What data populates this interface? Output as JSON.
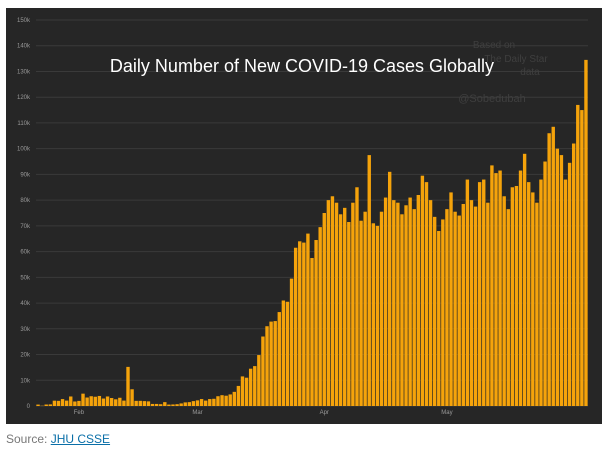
{
  "chart_data": {
    "type": "bar",
    "title": "Daily Number of New COVID-19 Cases Globally",
    "watermark": [
      "Based on",
      "The Daily Star",
      "data",
      "@Sobedubah"
    ],
    "ylim": [
      0,
      150000
    ],
    "y_ticks": [
      0,
      10000,
      20000,
      30000,
      40000,
      50000,
      60000,
      70000,
      80000,
      90000,
      100000,
      110000,
      120000,
      130000,
      140000,
      150000
    ],
    "y_tick_labels": [
      "0",
      "10k",
      "20k",
      "30k",
      "40k",
      "50k",
      "60k",
      "70k",
      "80k",
      "90k",
      "100k",
      "110k",
      "120k",
      "130k",
      "140k",
      "150k"
    ],
    "x_tick_labels": [
      {
        "label": "Feb",
        "index": 10
      },
      {
        "label": "Mar",
        "index": 39
      },
      {
        "label": "Apr",
        "index": 70
      },
      {
        "label": "May",
        "index": 100
      }
    ],
    "bar_color": "#f5a30b",
    "background_color": "#262626",
    "values": [
      555,
      98,
      570,
      623,
      2068,
      2000,
      2689,
      2100,
      3700,
      1752,
      1980,
      4800,
      3300,
      3800,
      3600,
      3900,
      2900,
      3700,
      3100,
      2600,
      3200,
      2100,
      15200,
      6500,
      2000,
      2000,
      1900,
      1800,
      800,
      800,
      700,
      1500,
      550,
      600,
      700,
      1000,
      1400,
      1500,
      1900,
      2200,
      2700,
      2100,
      2700,
      2800,
      3800,
      4200,
      4000,
      4500,
      5500,
      7800,
      11500,
      11000,
      14500,
      15500,
      19800,
      27000,
      31000,
      32800,
      33000,
      36500,
      41000,
      40500,
      49500,
      61500,
      64000,
      63500,
      67000,
      57500,
      64500,
      69500,
      75000,
      80000,
      81500,
      79000,
      74500,
      77000,
      71500,
      79000,
      85000,
      72000,
      75500,
      97500,
      71000,
      70000,
      75500,
      81000,
      91000,
      80000,
      79000,
      74500,
      78000,
      81000,
      76500,
      82000,
      89500,
      87000,
      80000,
      73500,
      68000,
      72500,
      76500,
      83000,
      75500,
      74000,
      78500,
      88000,
      80000,
      77500,
      87000,
      88000,
      79000,
      93500,
      90500,
      91500,
      81500,
      76500,
      85000,
      85500,
      91500,
      98000,
      87000,
      83000,
      79000,
      88000,
      95000,
      106000,
      108500,
      100000,
      97500,
      88000,
      94500,
      102000,
      117000,
      115000,
      134500
    ]
  },
  "source": {
    "prefix": "Source: ",
    "link_text": "JHU CSSE"
  }
}
